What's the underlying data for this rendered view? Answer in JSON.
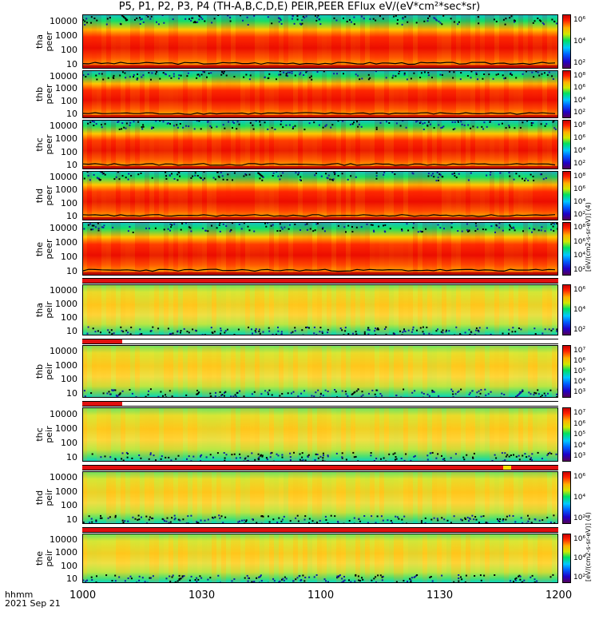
{
  "title": "P5, P1, P2, P3, P4 (TH-A,B,C,D,E) PEIR,PEER EFlux eV/(eV*cm²*sec*sr)",
  "x_axis": {
    "label_line1": "hhmm",
    "label_line2": "2021 Sep 21",
    "ticks": [
      "1000",
      "1030",
      "1100",
      "1130",
      "1200"
    ]
  },
  "colorbar_unit_peer": "[eV/(cm2-s-sr-eV)] (4)",
  "colorbar_unit_peir": "[eV/(cm2-s-sr-eV)] (4)",
  "chart_data": {
    "type": "heatmap",
    "title": "P5, P1, P2, P3, P4 (TH-A,B,C,D,E) PEIR,PEER EFlux eV/(eV*cm²*sec*sr)",
    "x": {
      "start": "10:00",
      "end": "12:00",
      "ticks": [
        "1000",
        "1030",
        "1100",
        "1130",
        "1200"
      ],
      "date": "2021 Sep 21"
    },
    "y": {
      "scale": "log",
      "range_eV": [
        5,
        30000
      ],
      "ticks": [
        "10",
        "100",
        "1000",
        "10000"
      ]
    },
    "colorscale": [
      "#55005a",
      "#2000c8",
      "#0060ff",
      "#00c8ff",
      "#00e060",
      "#d0e800",
      "#ffb000",
      "#ff2000",
      "#c80000"
    ],
    "panels": [
      {
        "id": "tha-peer",
        "line1": "tha",
        "line2": "peer",
        "cbar_ticks": [
          "10⁶",
          "10⁴",
          "10²"
        ]
      },
      {
        "id": "thb-peer",
        "line1": "thb",
        "line2": "peer",
        "cbar_ticks": [
          "10⁸",
          "10⁶",
          "10⁴",
          "10²"
        ]
      },
      {
        "id": "thc-peer",
        "line1": "thc",
        "line2": "peer",
        "cbar_ticks": [
          "10⁸",
          "10⁶",
          "10⁴",
          "10²"
        ]
      },
      {
        "id": "thd-peer",
        "line1": "thd",
        "line2": "peer",
        "cbar_ticks": [
          "10⁸",
          "10⁶",
          "10⁴",
          "10²"
        ]
      },
      {
        "id": "the-peer",
        "line1": "the",
        "line2": "peer",
        "cbar_ticks": [
          "10⁸",
          "10⁶",
          "10⁴",
          "10²"
        ]
      },
      {
        "id": "tha-peir",
        "line1": "tha",
        "line2": "peir",
        "cbar_ticks": [
          "10⁶",
          "10⁴",
          "10²"
        ]
      },
      {
        "id": "thb-peir",
        "line1": "thb",
        "line2": "peir",
        "cbar_ticks": [
          "10⁷",
          "10⁶",
          "10⁵",
          "10⁴",
          "10³"
        ]
      },
      {
        "id": "thc-peir",
        "line1": "thc",
        "line2": "peir",
        "cbar_ticks": [
          "10⁷",
          "10⁶",
          "10⁵",
          "10⁴",
          "10³"
        ]
      },
      {
        "id": "thd-peir",
        "line1": "thd",
        "line2": "peir",
        "cbar_ticks": [
          "10⁶",
          "10⁴",
          "10²"
        ]
      },
      {
        "id": "the-peir",
        "line1": "the",
        "line2": "peir",
        "cbar_ticks": [
          "10⁶",
          "10⁴",
          "10²"
        ]
      }
    ]
  }
}
